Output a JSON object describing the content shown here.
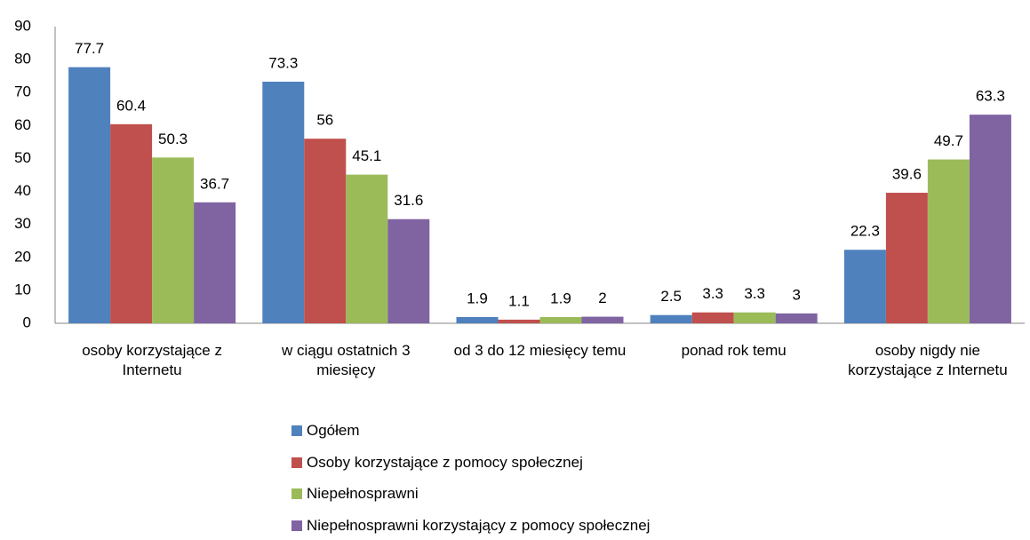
{
  "chart_data": {
    "type": "bar",
    "categories": [
      "osoby korzystające z Internetu",
      "w ciągu ostatnich 3 miesięcy",
      "od 3 do 12 miesięcy temu",
      "ponad rok temu",
      "osoby nigdy nie korzystające z Internetu"
    ],
    "series": [
      {
        "name": "Ogółem",
        "color": "#4f81bd",
        "values": [
          77.7,
          73.3,
          1.9,
          2.5,
          22.3
        ]
      },
      {
        "name": "Osoby korzystające z pomocy społecznej",
        "color": "#c0504d",
        "values": [
          60.4,
          56,
          1.1,
          3.3,
          39.6
        ]
      },
      {
        "name": "Niepełnosprawni",
        "color": "#9bbb59",
        "values": [
          50.3,
          45.1,
          1.9,
          3.3,
          49.7
        ]
      },
      {
        "name": "Niepełnosprawni korzystający z pomocy społecznej",
        "color": "#8064a2",
        "values": [
          36.7,
          31.6,
          2,
          3,
          63.3
        ]
      }
    ],
    "ylim": [
      0,
      90
    ],
    "yticks": [
      0,
      10,
      20,
      30,
      40,
      50,
      60,
      70,
      80,
      90
    ],
    "grid": false,
    "legend": "bottom"
  }
}
